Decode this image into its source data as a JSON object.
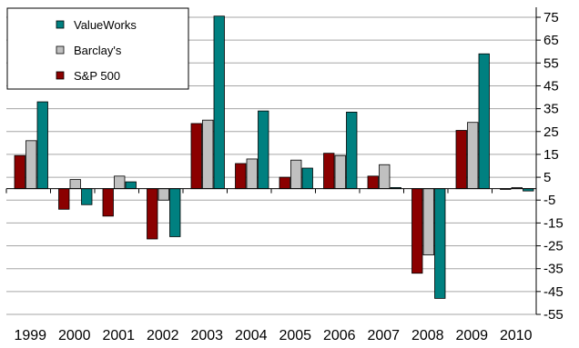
{
  "chart_data": {
    "type": "bar",
    "title": "",
    "xlabel": "",
    "ylabel": "",
    "categories": [
      "1999",
      "2000",
      "2001",
      "2002",
      "2003",
      "2004",
      "2005",
      "2006",
      "2007",
      "2008",
      "2009",
      "2010"
    ],
    "series": [
      {
        "name": "S&P 500",
        "color": "#8b0000",
        "values": [
          14.5,
          -9,
          -12,
          -22,
          28.5,
          11,
          5,
          15.5,
          5.5,
          -37,
          25.5,
          0
        ]
      },
      {
        "name": "Barclay's",
        "color": "#c0c0c0",
        "values": [
          21,
          4,
          5.5,
          -5,
          30,
          13,
          12.5,
          14.5,
          10.5,
          -29,
          29,
          0.5
        ]
      },
      {
        "name": "ValueWorks",
        "color": "#008080",
        "values": [
          38,
          -7,
          3,
          -21,
          75.5,
          34,
          9,
          33.5,
          0.5,
          -48,
          59,
          -1
        ]
      }
    ],
    "ylim": [
      -55,
      80
    ],
    "y_ticks": [
      -55,
      -45,
      -35,
      -25,
      -15,
      -5,
      5,
      15,
      25,
      35,
      45,
      55,
      65,
      75
    ],
    "y_axis_side": "right",
    "grid": true,
    "legend": {
      "position": "top-left",
      "entries": [
        "ValueWorks",
        "Barclay's",
        "S&P 500"
      ]
    }
  }
}
